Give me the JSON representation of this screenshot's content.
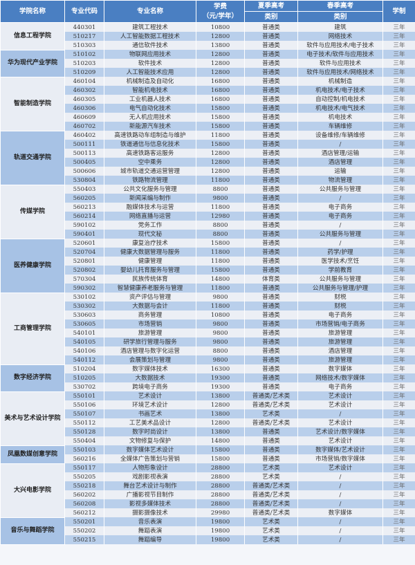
{
  "header": {
    "college": "学院名称",
    "code": "专业代码",
    "name": "专业名称",
    "fee_line1": "学费",
    "fee_line2": "（元/学年）",
    "summer": "夏季高考",
    "summer_sub": "类别",
    "spring": "春季高考",
    "spring_sub": "类别",
    "years": "学制"
  },
  "colors": {
    "header": "#4a7fc2",
    "row_light": "#eceff5",
    "row_dark": "#b9cfeb"
  },
  "colleges": [
    {
      "name": "信息工程学院",
      "rows": [
        [
          "440301",
          "建筑工程技术",
          "10800",
          "普通类",
          "建筑",
          "三年"
        ],
        [
          "510217",
          "人工智能数据工程技术",
          "12800",
          "普通类",
          "网络技术",
          "三年"
        ],
        [
          "510303",
          "通信软件技术",
          "13800",
          "普通类",
          "软件与应用技术/电子技术",
          "三年"
        ]
      ]
    },
    {
      "name": "华为现代产业学院",
      "rows": [
        [
          "510102",
          "物联网应用技术",
          "12800",
          "普通类",
          "电子技术/软件与应用技术",
          "三年"
        ],
        [
          "510203",
          "软件技术",
          "12800",
          "普通类",
          "软件与应用技术",
          "三年"
        ],
        [
          "510209",
          "人工智能技术应用",
          "12800",
          "普通类",
          "软件与应用技术/网络技术",
          "三年"
        ]
      ]
    },
    {
      "name": "智能制造学院",
      "rows": [
        [
          "460104",
          "机械制造及自动化",
          "16800",
          "普通类",
          "机械制造",
          "三年"
        ],
        [
          "460302",
          "智能机电技术",
          "16800",
          "普通类",
          "机电技术/电子技术",
          "三年"
        ],
        [
          "460305",
          "工业机器人技术",
          "16800",
          "普通类",
          "自动控制/机电技术",
          "三年"
        ],
        [
          "460306",
          "电气自动化技术",
          "15800",
          "普通类",
          "机电技术/电气技术",
          "三年"
        ],
        [
          "460609",
          "无人机应用技术",
          "15800",
          "普通类",
          "机电技术",
          "三年"
        ],
        [
          "460702",
          "新能源汽车技术",
          "15800",
          "普通类",
          "车辆维修",
          "三年"
        ]
      ]
    },
    {
      "name": "轨道交通学院",
      "rows": [
        [
          "460402",
          "高速铁路动车组制造与维护",
          "11800",
          "普通类",
          "设备维修/车辆维修",
          "三年"
        ],
        [
          "500111",
          "铁道通信与信息化技术",
          "15800",
          "普通类",
          "/",
          "三年"
        ],
        [
          "500113",
          "高速铁路客运服务",
          "12800",
          "普通类",
          "酒店管理/运输",
          "三年"
        ],
        [
          "500405",
          "空中乘务",
          "12800",
          "普通类",
          "酒店管理",
          "三年"
        ],
        [
          "500606",
          "城市轨道交通运营管理",
          "12800",
          "普通类",
          "运输",
          "三年"
        ],
        [
          "530804",
          "铁路物流管理",
          "11800",
          "普通类",
          "物流管理",
          "三年"
        ]
      ]
    },
    {
      "name": "传媒学院",
      "rows": [
        [
          "550403",
          "公共文化服务与管理",
          "8800",
          "普通类",
          "公共服务与管理",
          "三年"
        ],
        [
          "560205",
          "新闻采编与制作",
          "9800",
          "普通类",
          "/",
          "三年"
        ],
        [
          "560213",
          "融媒体技术与运营",
          "11800",
          "普通类",
          "电子商务",
          "三年"
        ],
        [
          "560214",
          "网络直播与运营",
          "12980",
          "普通类",
          "电子商务",
          "三年"
        ],
        [
          "590102",
          "党务工作",
          "8800",
          "普通类",
          "/",
          "三年"
        ],
        [
          "590401",
          "现代文秘",
          "8800",
          "普通类",
          "公共服务与管理",
          "三年"
        ]
      ]
    },
    {
      "name": "医养健康学院",
      "rows": [
        [
          "520601",
          "康复治疗技术",
          "15800",
          "普通类",
          "/",
          "三年"
        ],
        [
          "520704",
          "健康大数据管理与服务",
          "11800",
          "普通类",
          "药学/护理",
          "三年"
        ],
        [
          "520801",
          "健康管理",
          "11800",
          "普通类",
          "医学技术/烹饪",
          "三年"
        ],
        [
          "520802",
          "婴幼儿托育服务与管理",
          "15800",
          "普通类",
          "学前教育",
          "三年"
        ],
        [
          "570304",
          "民族传统体育",
          "14800",
          "体育类",
          "公共服务与管理",
          "三年"
        ],
        [
          "590302",
          "智慧健康养老服务与管理",
          "11800",
          "普通类",
          "公共服务与管理/护理",
          "三年"
        ]
      ]
    },
    {
      "name": "工商管理学院",
      "rows": [
        [
          "530102",
          "资产评估与管理",
          "9800",
          "普通类",
          "财税",
          "三年"
        ],
        [
          "530302",
          "大数据与会计",
          "11800",
          "普通类",
          "财税",
          "三年"
        ],
        [
          "530603",
          "商务管理",
          "10800",
          "普通类",
          "电子商务",
          "三年"
        ],
        [
          "530605",
          "市场营销",
          "9800",
          "普通类",
          "市场营销/电子商务",
          "三年"
        ],
        [
          "540101",
          "旅游管理",
          "9800",
          "普通类",
          "旅游管理",
          "三年"
        ],
        [
          "540105",
          "研学旅行管理与服务",
          "9800",
          "普通类",
          "旅游管理",
          "三年"
        ],
        [
          "540106",
          "酒店管理与数字化运营",
          "8800",
          "普通类",
          "酒店管理",
          "三年"
        ],
        [
          "540112",
          "会展策划与管理",
          "9800",
          "普通类",
          "旅游管理",
          "三年"
        ]
      ]
    },
    {
      "name": "数字经济学院",
      "rows": [
        [
          "510204",
          "数字媒体技术",
          "16300",
          "普通类",
          "数字媒体",
          "三年"
        ],
        [
          "510205",
          "大数据技术",
          "19300",
          "普通类",
          "网络技术/数字媒体",
          "三年"
        ],
        [
          "530702",
          "跨境电子商务",
          "19300",
          "普通类",
          "电子商务",
          "三年"
        ]
      ]
    },
    {
      "name": "美术与艺术设计学院",
      "rows": [
        [
          "550101",
          "艺术设计",
          "13800",
          "普通类/艺术类",
          "艺术设计",
          "三年"
        ],
        [
          "550106",
          "环境艺术设计",
          "12800",
          "普通类/艺术类",
          "艺术设计",
          "三年"
        ],
        [
          "550107",
          "书画艺术",
          "13800",
          "艺术类",
          "/",
          "三年"
        ],
        [
          "550112",
          "工艺美术品设计",
          "12800",
          "普通类/艺术类",
          "艺术设计",
          "三年"
        ],
        [
          "550128",
          "数字时尚设计",
          "13800",
          "普通类",
          "艺术设计/数字媒体",
          "三年"
        ],
        [
          "550404",
          "文物修复与保护",
          "14800",
          "普通类",
          "艺术设计",
          "三年"
        ]
      ]
    },
    {
      "name": "凤凰数媒创意学院",
      "rows": [
        [
          "550103",
          "数字媒体艺术设计",
          "15800",
          "普通类",
          "数字媒体/艺术设计",
          "三年"
        ],
        [
          "560216",
          "全媒体广告策划与营销",
          "15800",
          "普通类",
          "市场营销/数字媒体",
          "三年"
        ]
      ]
    },
    {
      "name": "大兴电影学院",
      "rows": [
        [
          "550117",
          "人物形象设计",
          "28800",
          "艺术类",
          "艺术设计",
          "三年"
        ],
        [
          "550205",
          "戏剧影视表演",
          "28800",
          "艺术类",
          "/",
          "三年"
        ],
        [
          "550218",
          "舞台艺术设计与制作",
          "28800",
          "普通类/艺术类",
          "/",
          "三年"
        ],
        [
          "560202",
          "广播影视节目制作",
          "28800",
          "普通类/艺术类",
          "/",
          "三年"
        ],
        [
          "560208",
          "影视多媒体技术",
          "28800",
          "普通类/艺术类",
          "/",
          "三年"
        ],
        [
          "560212",
          "摄影摄像技术",
          "29980",
          "普通类/艺术类",
          "数字媒体",
          "三年"
        ]
      ]
    },
    {
      "name": "音乐与舞蹈学院",
      "rows": [
        [
          "550201",
          "音乐表演",
          "19800",
          "艺术类",
          "/",
          "三年"
        ],
        [
          "550202",
          "舞蹈表演",
          "19800",
          "艺术类",
          "/",
          "三年"
        ],
        [
          "550215",
          "舞蹈编导",
          "19800",
          "艺术类",
          "/",
          "三年"
        ]
      ]
    }
  ]
}
